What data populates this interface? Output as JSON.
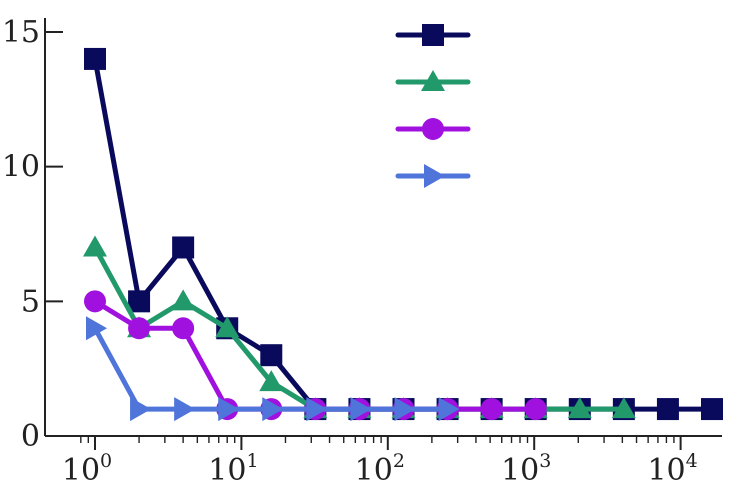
{
  "chart_data": {
    "type": "line",
    "title": "",
    "xlabel": "",
    "ylabel": "",
    "x_scale": "log",
    "xlim": [
      0.72,
      16384
    ],
    "ylim": [
      0,
      15.8
    ],
    "x_ticks": [
      {
        "value": 1,
        "base": "10",
        "exp": "0"
      },
      {
        "value": 10,
        "base": "10",
        "exp": "1"
      },
      {
        "value": 100,
        "base": "10",
        "exp": "2"
      },
      {
        "value": 1000,
        "base": "10",
        "exp": "3"
      },
      {
        "value": 10000,
        "base": "10",
        "exp": "4"
      }
    ],
    "y_ticks": [
      {
        "value": 0,
        "label": "0"
      },
      {
        "value": 5,
        "label": "5"
      },
      {
        "value": 10,
        "label": "10"
      },
      {
        "value": 15,
        "label": "15"
      }
    ],
    "grid": false,
    "legend_position": "top-center",
    "series": [
      {
        "color": "#0a0a5c",
        "marker": "square",
        "points": [
          [
            1,
            14
          ],
          [
            2,
            5
          ],
          [
            4,
            7
          ],
          [
            8,
            4
          ],
          [
            16,
            3
          ],
          [
            32,
            1
          ],
          [
            64,
            1
          ],
          [
            128,
            1
          ],
          [
            256,
            1
          ],
          [
            512,
            1
          ],
          [
            1024,
            1
          ],
          [
            2048,
            1
          ],
          [
            4096,
            1
          ],
          [
            8192,
            1
          ],
          [
            16384,
            1
          ]
        ]
      },
      {
        "color": "#22996b",
        "marker": "triangle-up",
        "points": [
          [
            1,
            7
          ],
          [
            2,
            4
          ],
          [
            4,
            5
          ],
          [
            8,
            4
          ],
          [
            16,
            2
          ],
          [
            32,
            1
          ],
          [
            64,
            1
          ],
          [
            128,
            1
          ],
          [
            256,
            1
          ],
          [
            512,
            1
          ],
          [
            1024,
            1
          ],
          [
            2048,
            1
          ],
          [
            4096,
            1
          ]
        ]
      },
      {
        "color": "#a010de",
        "marker": "circle",
        "points": [
          [
            1,
            5
          ],
          [
            2,
            4
          ],
          [
            4,
            4
          ],
          [
            8,
            1
          ],
          [
            16,
            1
          ],
          [
            32,
            1
          ],
          [
            64,
            1
          ],
          [
            128,
            1
          ],
          [
            256,
            1
          ],
          [
            512,
            1
          ],
          [
            1024,
            1
          ]
        ]
      },
      {
        "color": "#4f74da",
        "marker": "triangle-right",
        "points": [
          [
            1,
            4
          ],
          [
            2,
            1
          ],
          [
            4,
            1
          ],
          [
            8,
            1
          ],
          [
            16,
            1
          ],
          [
            32,
            1
          ],
          [
            64,
            1
          ],
          [
            128,
            1
          ],
          [
            256,
            1
          ]
        ]
      }
    ]
  }
}
